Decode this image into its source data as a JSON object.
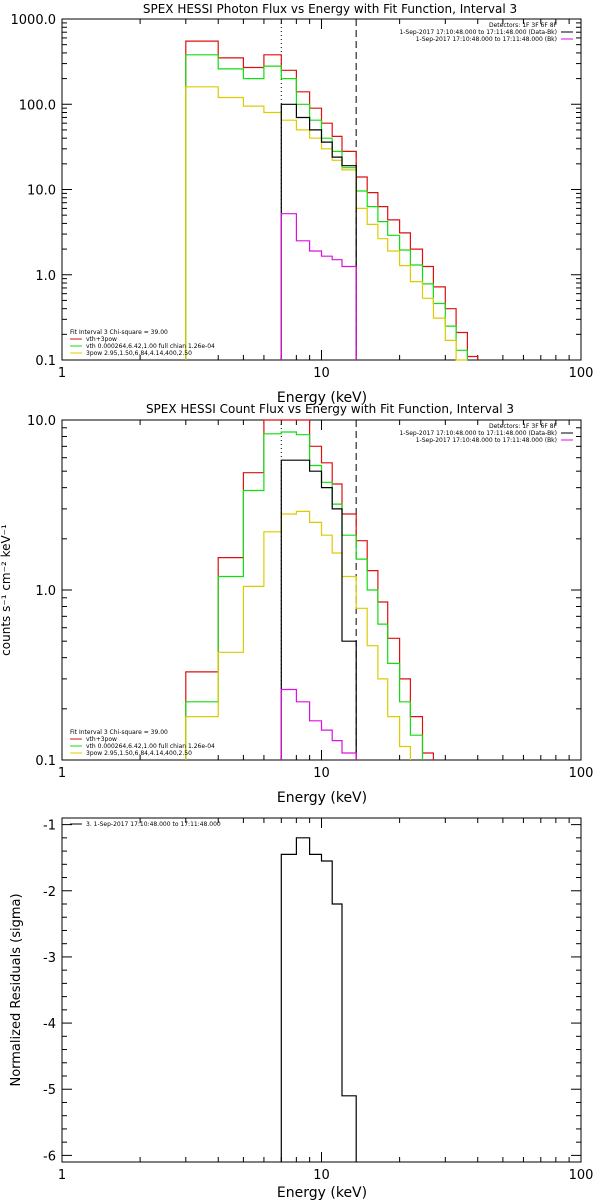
{
  "figure": {
    "colors": {
      "black": "#000000",
      "red": "#dd1111",
      "green": "#11dd11",
      "yellow": "#ddcc00",
      "magenta": "#dd11dd"
    }
  },
  "chart_data": [
    {
      "type": "line",
      "title": "SPEX HESSI Photon Flux vs Energy with Fit Function, Interval 3",
      "xlabel": "Energy (keV)",
      "ylabel": "",
      "xscale": "log",
      "yscale": "log",
      "xlim": [
        1,
        100
      ],
      "ylim": [
        0.1,
        1000
      ],
      "xticks": [
        1,
        10,
        100
      ],
      "xtick_labels": [
        "1",
        "10",
        "100"
      ],
      "yticks": [
        0.1,
        1,
        10,
        100,
        1000
      ],
      "ytick_labels": [
        "0.1",
        "1.0",
        "10.0",
        "100.0",
        "1000.0"
      ],
      "legend_top": [
        "Detectors: 1F 3F 6F 8F",
        "1-Sep-2017 17:10:48.000 to 17:11:48.000 (Data-Bk)",
        "1-Sep-2017 17:10:48.000 to 17:11:48.000 (Bk)"
      ],
      "legend_bottom": [
        "Fit Interval 3   Chi-square = 39.00",
        "vth+3pow",
        "vth 0.000264,6.42,1.00  full chian 1.26e-04",
        "3pow 2.95,1.50,6.84,4.14,400,2.50"
      ],
      "vlines": [
        7.0,
        13.6
      ],
      "edges": [
        3.0,
        4.0,
        5.0,
        6.0,
        7.0,
        8.0,
        9.0,
        10.0,
        11.0,
        12.0,
        13.6,
        15.0,
        16.5,
        18.0,
        20.0,
        22.0,
        24.5,
        27.0,
        30.0,
        33.0,
        36.5,
        40.0
      ],
      "series": [
        {
          "color": "red",
          "values": [
            550,
            350,
            270,
            380,
            250,
            140,
            90,
            60,
            42,
            28,
            14,
            9.2,
            6.3,
            4.4,
            3.1,
            2.0,
            1.25,
            0.72,
            0.4,
            0.21,
            0.11
          ]
        },
        {
          "color": "green",
          "values": [
            380,
            260,
            200,
            280,
            200,
            100,
            65,
            40,
            28,
            18,
            9.6,
            6.3,
            4.2,
            2.9,
            1.95,
            1.3,
            0.78,
            0.46,
            0.25,
            0.13
          ]
        },
        {
          "color": "yellow",
          "values": [
            160,
            120,
            95,
            80,
            65,
            50,
            40,
            30,
            22,
            17,
            6.0,
            3.9,
            2.65,
            1.9,
            1.28,
            0.83,
            0.53,
            0.31,
            0.17,
            0.095
          ]
        },
        {
          "color": "black",
          "startEdge": 4,
          "values": [
            100,
            70,
            50,
            36,
            24,
            19
          ]
        },
        {
          "color": "magenta",
          "startEdge": 4,
          "values": [
            5.2,
            2.5,
            1.9,
            1.65,
            1.5,
            1.25
          ]
        }
      ]
    },
    {
      "type": "line",
      "title": "SPEX HESSI Count Flux vs Energy with Fit Function, Interval 3",
      "xlabel": "Energy (keV)",
      "ylabel": "counts s⁻¹ cm⁻² keV⁻¹",
      "xscale": "log",
      "yscale": "log",
      "xlim": [
        1,
        100
      ],
      "ylim": [
        0.1,
        10
      ],
      "xticks": [
        1,
        10,
        100
      ],
      "xtick_labels": [
        "1",
        "10",
        "100"
      ],
      "yticks": [
        0.1,
        1,
        10
      ],
      "ytick_labels": [
        "0.1",
        "1.0",
        "10.0"
      ],
      "legend_top": [
        "Detectors: 1F 3F 6F 8F",
        "1-Sep-2017 17:10:48.000 to 17:11:48.000 (Data-Bk)",
        "1-Sep-2017 17:10:48.000 to 17:11:48.000 (Bk)"
      ],
      "legend_bottom": [
        "Fit Interval 3   Chi-square = 39.00",
        "vth+3pow",
        "vth 0.000264,6.42,1.00  full chian 1.26e-04",
        "3pow 2.95,1.50,6.84,4.14,400,2.50"
      ],
      "vlines": [
        7.0,
        13.6
      ],
      "edges": [
        3.0,
        4.0,
        5.0,
        6.0,
        7.0,
        8.0,
        9.0,
        10.0,
        11.0,
        12.0,
        13.6,
        15.0,
        16.5,
        18.0,
        20.0,
        22.0,
        24.5,
        27.0
      ],
      "series": [
        {
          "color": "red",
          "values": [
            0.33,
            1.55,
            4.9,
            10.5,
            10.8,
            10.5,
            7.0,
            5.6,
            4.2,
            2.8,
            1.95,
            1.3,
            0.85,
            0.52,
            0.3,
            0.18,
            0.11
          ]
        },
        {
          "color": "green",
          "values": [
            0.22,
            1.2,
            3.85,
            8.3,
            8.5,
            8.2,
            5.4,
            4.3,
            3.2,
            2.1,
            1.52,
            1.0,
            0.63,
            0.37,
            0.22,
            0.14
          ]
        },
        {
          "color": "yellow",
          "values": [
            0.18,
            0.43,
            1.05,
            2.2,
            2.8,
            2.9,
            2.5,
            2.1,
            1.65,
            1.2,
            0.78,
            0.47,
            0.3,
            0.18,
            0.12
          ]
        },
        {
          "color": "black",
          "startEdge": 4,
          "values": [
            5.8,
            5.8,
            5.0,
            4.0,
            3.0,
            0.5
          ]
        },
        {
          "color": "magenta",
          "startEdge": 4,
          "values": [
            0.26,
            0.22,
            0.17,
            0.15,
            0.13,
            0.11
          ]
        }
      ]
    },
    {
      "type": "line",
      "title": "",
      "xlabel": "Energy (keV)",
      "ylabel": "Normalized Residuals (sigma)",
      "xscale": "log",
      "yscale": "linear",
      "xlim": [
        1,
        100
      ],
      "ylim": [
        -6.1,
        -0.9
      ],
      "xticks": [
        1,
        10,
        100
      ],
      "xtick_labels": [
        "1",
        "10",
        "100"
      ],
      "yticks": [
        -6,
        -5,
        -4,
        -3,
        -2,
        -1
      ],
      "ytick_labels": [
        "-6",
        "-5",
        "-4",
        "-3",
        "-2",
        "-1"
      ],
      "legend_top": [
        "3.  1-Sep-2017 17:10:48.000 to 17:11:48.000"
      ],
      "legend_bottom": [],
      "vlines": [],
      "edges": [
        7.0,
        8.0,
        9.0,
        10.0,
        11.0,
        12.0,
        13.6
      ],
      "series": [
        {
          "color": "black",
          "values": [
            -1.45,
            -1.2,
            -1.45,
            -1.55,
            -2.2,
            -5.1
          ]
        }
      ]
    }
  ]
}
